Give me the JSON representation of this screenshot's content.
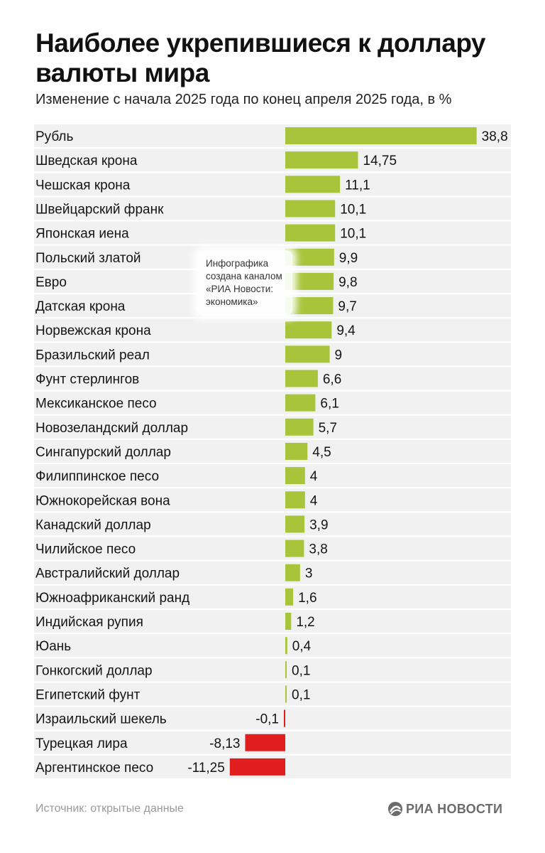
{
  "header": {
    "title": "Наиболее укрепившиеся к доллару валюты мира",
    "subtitle": "Изменение с начала 2025 года по конец апреля 2025 года, в %"
  },
  "watermark": {
    "lines": [
      "Инфографика",
      "создана каналом",
      "«РИА Новости:",
      "экономика»"
    ]
  },
  "footer": {
    "source": "Источник: открытые данные",
    "logo_text": "РИА НОВОСТИ"
  },
  "colors": {
    "positive": "#a8c43a",
    "negative": "#e01e1e",
    "row_background": "#f1f1f1"
  },
  "chart_data": {
    "type": "bar",
    "orientation": "horizontal",
    "title": "Наиболее укрепившиеся к доллару валюты мира",
    "subtitle": "Изменение с начала 2025 года по конец апреля 2025 года, в %",
    "grid": false,
    "categories": [
      "Рубль",
      "Шведская крона",
      "Чешская крона",
      "Швейцарский франк",
      "Японская иена",
      "Польский златой",
      "Евро",
      "Датская крона",
      "Норвежская крона",
      "Бразильский реал",
      "Фунт стерлингов",
      "Мексиканское песо",
      "Новозеландский доллар",
      "Сингапурский доллар",
      "Филиппинское песо",
      "Южнокорейская вона",
      "Канадский доллар",
      "Чилийское песо",
      "Австралийский доллар",
      "Южноафриканский ранд",
      "Индийская рупия",
      "Юань",
      "Гонкогский доллар",
      "Египетский фунт",
      "Израильский шекель",
      "Турецкая лира",
      "Аргентинское песо"
    ],
    "values": [
      38.8,
      14.75,
      11.1,
      10.1,
      10.1,
      9.9,
      9.8,
      9.7,
      9.4,
      9,
      6.6,
      6.1,
      5.7,
      4.5,
      4,
      4,
      3.9,
      3.8,
      3,
      1.6,
      1.2,
      0.4,
      0.1,
      0.1,
      -0.1,
      -8.13,
      -11.25
    ],
    "value_labels": [
      "38,8",
      "14,75",
      "11,1",
      "10,1",
      "10,1",
      "9,9",
      "9,8",
      "9,7",
      "9,4",
      "9",
      "6,6",
      "6,1",
      "5,7",
      "4,5",
      "4",
      "4",
      "3,9",
      "3,8",
      "3",
      "1,6",
      "1,2",
      "0,4",
      "0,1",
      "0,1",
      "-0,1",
      "-8,13",
      "-11,25"
    ]
  }
}
